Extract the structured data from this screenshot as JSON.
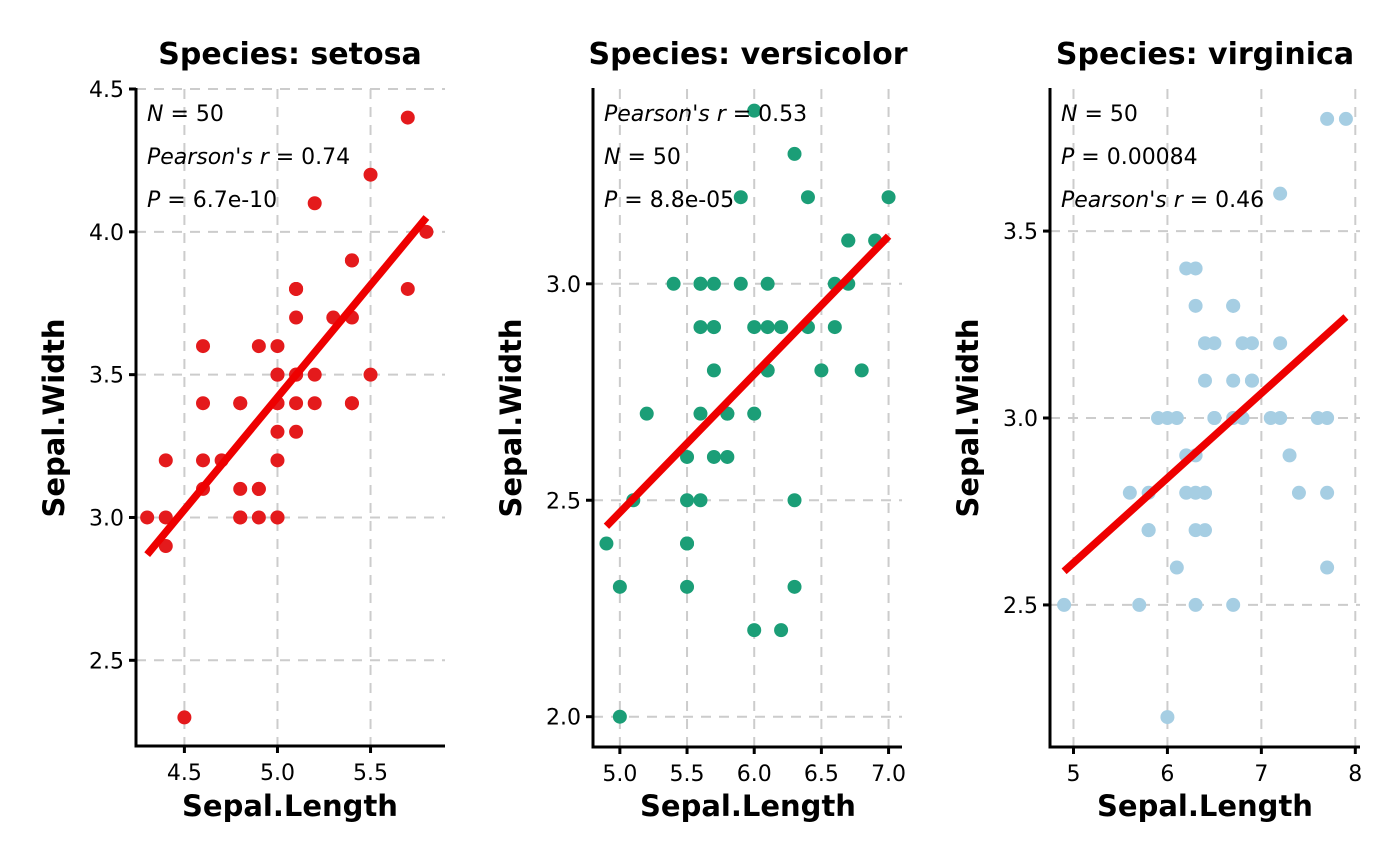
{
  "chart_data": [
    {
      "type": "scatter",
      "title": "Species: setosa",
      "xlabel": "Sepal.Length",
      "ylabel": "Sepal.Width",
      "xlim": [
        4.24,
        5.9
      ],
      "ylim": [
        2.2,
        4.5
      ],
      "xticks": [
        4.5,
        5.0,
        5.5
      ],
      "xtick_labels": [
        "4.5",
        "5.0",
        "5.5"
      ],
      "yticks": [
        2.5,
        3.0,
        3.5,
        4.0,
        4.5
      ],
      "ytick_labels": [
        "2.5",
        "3.0",
        "3.5",
        "4.0",
        "4.5"
      ],
      "grid": true,
      "point_color": "#e41a1c",
      "fit_color": "#ee0000",
      "stats": [
        {
          "label": "N",
          "value": "50"
        },
        {
          "label": "Pearson's r",
          "value": "0.74"
        },
        {
          "label": "P",
          "value": "6.7e-10"
        }
      ],
      "fit": {
        "x": [
          4.3,
          5.8
        ],
        "y": [
          2.87,
          4.05
        ]
      },
      "points": [
        [
          4.3,
          3.0
        ],
        [
          4.4,
          3.0
        ],
        [
          4.4,
          2.9
        ],
        [
          4.4,
          3.2
        ],
        [
          4.5,
          2.3
        ],
        [
          4.6,
          3.1
        ],
        [
          4.6,
          3.4
        ],
        [
          4.6,
          3.6
        ],
        [
          4.6,
          3.2
        ],
        [
          4.7,
          3.2
        ],
        [
          4.8,
          3.4
        ],
        [
          4.8,
          3.0
        ],
        [
          4.8,
          3.4
        ],
        [
          4.8,
          3.1
        ],
        [
          4.8,
          3.0
        ],
        [
          4.9,
          3.0
        ],
        [
          4.9,
          3.1
        ],
        [
          4.9,
          3.6
        ],
        [
          4.9,
          3.1
        ],
        [
          5.0,
          3.6
        ],
        [
          5.0,
          3.4
        ],
        [
          5.0,
          3.0
        ],
        [
          5.0,
          3.4
        ],
        [
          5.0,
          3.2
        ],
        [
          5.0,
          3.5
        ],
        [
          5.0,
          3.3
        ],
        [
          5.0,
          3.5
        ],
        [
          5.1,
          3.5
        ],
        [
          5.1,
          3.5
        ],
        [
          5.1,
          3.8
        ],
        [
          5.1,
          3.7
        ],
        [
          5.1,
          3.3
        ],
        [
          5.1,
          3.4
        ],
        [
          5.1,
          3.8
        ],
        [
          5.1,
          3.8
        ],
        [
          5.2,
          3.5
        ],
        [
          5.2,
          3.4
        ],
        [
          5.2,
          4.1
        ],
        [
          5.3,
          3.7
        ],
        [
          5.4,
          3.9
        ],
        [
          5.4,
          3.7
        ],
        [
          5.4,
          3.9
        ],
        [
          5.4,
          3.4
        ],
        [
          5.4,
          3.4
        ],
        [
          5.5,
          4.2
        ],
        [
          5.5,
          3.5
        ],
        [
          5.7,
          4.4
        ],
        [
          5.7,
          3.8
        ],
        [
          5.8,
          4.0
        ],
        [
          5.0,
          3.0
        ]
      ]
    },
    {
      "type": "scatter",
      "title": "Species: versicolor",
      "xlabel": "Sepal.Length",
      "ylabel": "Sepal.Width",
      "xlim": [
        4.8,
        7.1
      ],
      "ylim": [
        1.93,
        3.45
      ],
      "xticks": [
        5.0,
        5.5,
        6.0,
        6.5,
        7.0
      ],
      "xtick_labels": [
        "5.0",
        "5.5",
        "6.0",
        "6.5",
        "7.0"
      ],
      "yticks": [
        2.0,
        2.5,
        3.0
      ],
      "ytick_labels": [
        "2.0",
        "2.5",
        "3.0"
      ],
      "grid": true,
      "point_color": "#1b9e77",
      "fit_color": "#ee0000",
      "stats": [
        {
          "label": "Pearson's r",
          "value": "0.53"
        },
        {
          "label": "N",
          "value": "50"
        },
        {
          "label": "P",
          "value": "8.8e-05"
        }
      ],
      "fit": {
        "x": [
          4.9,
          7.0
        ],
        "y": [
          2.44,
          3.11
        ]
      },
      "points": [
        [
          4.9,
          2.4
        ],
        [
          5.0,
          2.0
        ],
        [
          5.0,
          2.3
        ],
        [
          5.1,
          2.5
        ],
        [
          5.2,
          2.7
        ],
        [
          5.4,
          3.0
        ],
        [
          5.5,
          2.3
        ],
        [
          5.5,
          2.4
        ],
        [
          5.5,
          2.4
        ],
        [
          5.5,
          2.6
        ],
        [
          5.5,
          2.5
        ],
        [
          5.6,
          2.9
        ],
        [
          5.6,
          3.0
        ],
        [
          5.6,
          2.5
        ],
        [
          5.6,
          2.7
        ],
        [
          5.6,
          3.0
        ],
        [
          5.7,
          2.8
        ],
        [
          5.7,
          2.6
        ],
        [
          5.7,
          3.0
        ],
        [
          5.7,
          2.9
        ],
        [
          5.7,
          2.9
        ],
        [
          5.8,
          2.7
        ],
        [
          5.8,
          2.7
        ],
        [
          5.8,
          2.6
        ],
        [
          5.9,
          3.0
        ],
        [
          5.9,
          3.2
        ],
        [
          6.0,
          2.2
        ],
        [
          6.0,
          2.9
        ],
        [
          6.0,
          2.7
        ],
        [
          6.0,
          3.4
        ],
        [
          6.1,
          2.9
        ],
        [
          6.1,
          2.8
        ],
        [
          6.1,
          3.0
        ],
        [
          6.1,
          2.8
        ],
        [
          6.2,
          2.2
        ],
        [
          6.2,
          2.9
        ],
        [
          6.3,
          2.3
        ],
        [
          6.3,
          2.5
        ],
        [
          6.3,
          3.3
        ],
        [
          6.4,
          3.2
        ],
        [
          6.4,
          2.9
        ],
        [
          6.5,
          2.8
        ],
        [
          6.6,
          2.9
        ],
        [
          6.6,
          3.0
        ],
        [
          6.7,
          3.1
        ],
        [
          6.7,
          3.0
        ],
        [
          6.7,
          3.1
        ],
        [
          6.8,
          2.8
        ],
        [
          6.9,
          3.1
        ],
        [
          7.0,
          3.2
        ]
      ]
    },
    {
      "type": "scatter",
      "title": "Species: virginica",
      "xlabel": "Sepal.Length",
      "ylabel": "Sepal.Width",
      "xlim": [
        4.75,
        8.05
      ],
      "ylim": [
        2.12,
        3.88
      ],
      "xticks": [
        5,
        6,
        7,
        8
      ],
      "xtick_labels": [
        "5",
        "6",
        "7",
        "8"
      ],
      "yticks": [
        2.5,
        3.0,
        3.5
      ],
      "ytick_labels": [
        "2.5",
        "3.0",
        "3.5"
      ],
      "grid": true,
      "point_color": "#a6cee3",
      "fit_color": "#ee0000",
      "stats": [
        {
          "label": "N",
          "value": "50"
        },
        {
          "label": "P",
          "value": "0.00084"
        },
        {
          "label": "Pearson's r",
          "value": "0.46"
        }
      ],
      "fit": {
        "x": [
          4.9,
          7.9
        ],
        "y": [
          2.59,
          3.27
        ]
      },
      "points": [
        [
          4.9,
          2.5
        ],
        [
          5.6,
          2.8
        ],
        [
          5.7,
          2.5
        ],
        [
          5.8,
          2.7
        ],
        [
          5.8,
          2.8
        ],
        [
          5.8,
          2.7
        ],
        [
          5.9,
          3.0
        ],
        [
          6.0,
          2.2
        ],
        [
          6.0,
          3.0
        ],
        [
          6.1,
          3.0
        ],
        [
          6.1,
          2.6
        ],
        [
          6.2,
          2.8
        ],
        [
          6.2,
          3.4
        ],
        [
          6.3,
          3.3
        ],
        [
          6.3,
          2.7
        ],
        [
          6.3,
          2.9
        ],
        [
          6.3,
          2.5
        ],
        [
          6.3,
          2.8
        ],
        [
          6.3,
          3.4
        ],
        [
          6.4,
          2.8
        ],
        [
          6.4,
          3.2
        ],
        [
          6.4,
          2.7
        ],
        [
          6.4,
          2.8
        ],
        [
          6.4,
          3.1
        ],
        [
          6.5,
          3.0
        ],
        [
          6.5,
          3.2
        ],
        [
          6.5,
          3.0
        ],
        [
          6.7,
          2.5
        ],
        [
          6.7,
          3.3
        ],
        [
          6.7,
          3.1
        ],
        [
          6.7,
          3.0
        ],
        [
          6.7,
          3.3
        ],
        [
          6.8,
          3.0
        ],
        [
          6.8,
          3.2
        ],
        [
          6.9,
          3.2
        ],
        [
          6.9,
          3.1
        ],
        [
          6.9,
          3.1
        ],
        [
          7.1,
          3.0
        ],
        [
          7.2,
          3.6
        ],
        [
          7.2,
          3.2
        ],
        [
          7.2,
          3.0
        ],
        [
          7.3,
          2.9
        ],
        [
          7.4,
          2.8
        ],
        [
          7.6,
          3.0
        ],
        [
          7.7,
          3.8
        ],
        [
          7.7,
          2.6
        ],
        [
          7.7,
          2.8
        ],
        [
          7.7,
          3.0
        ],
        [
          7.9,
          3.8
        ],
        [
          6.2,
          2.9
        ]
      ]
    }
  ]
}
